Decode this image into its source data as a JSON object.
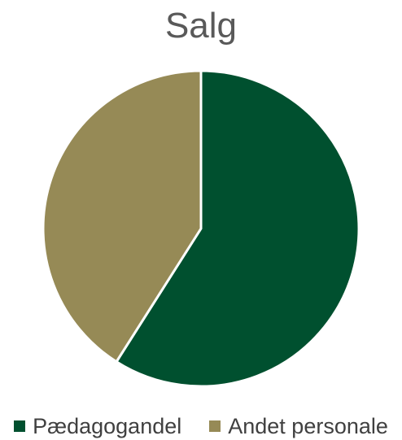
{
  "chart_data": {
    "type": "pie",
    "title": "Salg",
    "categories": [
      "Pædagogandel",
      "Andet personale"
    ],
    "values": [
      59,
      41
    ],
    "colors": [
      "#00502f",
      "#968a56"
    ],
    "legend_position": "bottom"
  }
}
